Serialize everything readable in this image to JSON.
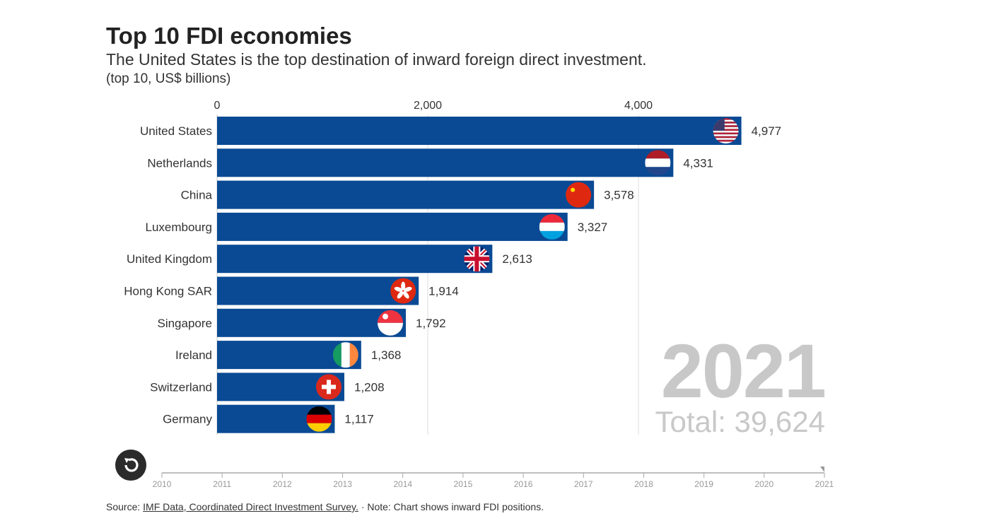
{
  "header": {
    "title": "Top 10 FDI economies",
    "subtitle": "The United States is the top destination of inward foreign direct investment.",
    "units": "(top 10, US$ billions)"
  },
  "chart_data": {
    "type": "bar",
    "orientation": "horizontal",
    "categories": [
      "United States",
      "Netherlands",
      "China",
      "Luxembourg",
      "United Kingdom",
      "Hong Kong SAR",
      "Singapore",
      "Ireland",
      "Switzerland",
      "Germany"
    ],
    "values": [
      4977,
      4331,
      3578,
      3327,
      2613,
      1914,
      1792,
      1368,
      1208,
      1117
    ],
    "value_labels": [
      "4,977",
      "4,331",
      "3,578",
      "3,327",
      "2,613",
      "1,914",
      "1,792",
      "1,368",
      "1,208",
      "1,117"
    ],
    "flags": [
      "us-flag-icon",
      "netherlands-flag-icon",
      "china-flag-icon",
      "luxembourg-flag-icon",
      "uk-flag-icon",
      "hong-kong-flag-icon",
      "singapore-flag-icon",
      "ireland-flag-icon",
      "switzerland-flag-icon",
      "germany-flag-icon"
    ],
    "xticks": [
      0,
      2000,
      4000
    ],
    "xtick_labels": [
      "0",
      "2,000",
      "4,000"
    ],
    "xlim": [
      0,
      5000
    ],
    "grid": true,
    "bar_color": "#0a4a94"
  },
  "year": "2021",
  "total": "Total: 39,624",
  "timeline": {
    "years": [
      "2010",
      "2011",
      "2012",
      "2013",
      "2014",
      "2015",
      "2016",
      "2017",
      "2018",
      "2019",
      "2020",
      "2021"
    ],
    "selected": "2021"
  },
  "footer": {
    "source_prefix": "Source: ",
    "source_link": "IMF Data, Coordinated Direct Investment Survey.",
    "note": " · Note: Chart shows inward FDI positions."
  }
}
